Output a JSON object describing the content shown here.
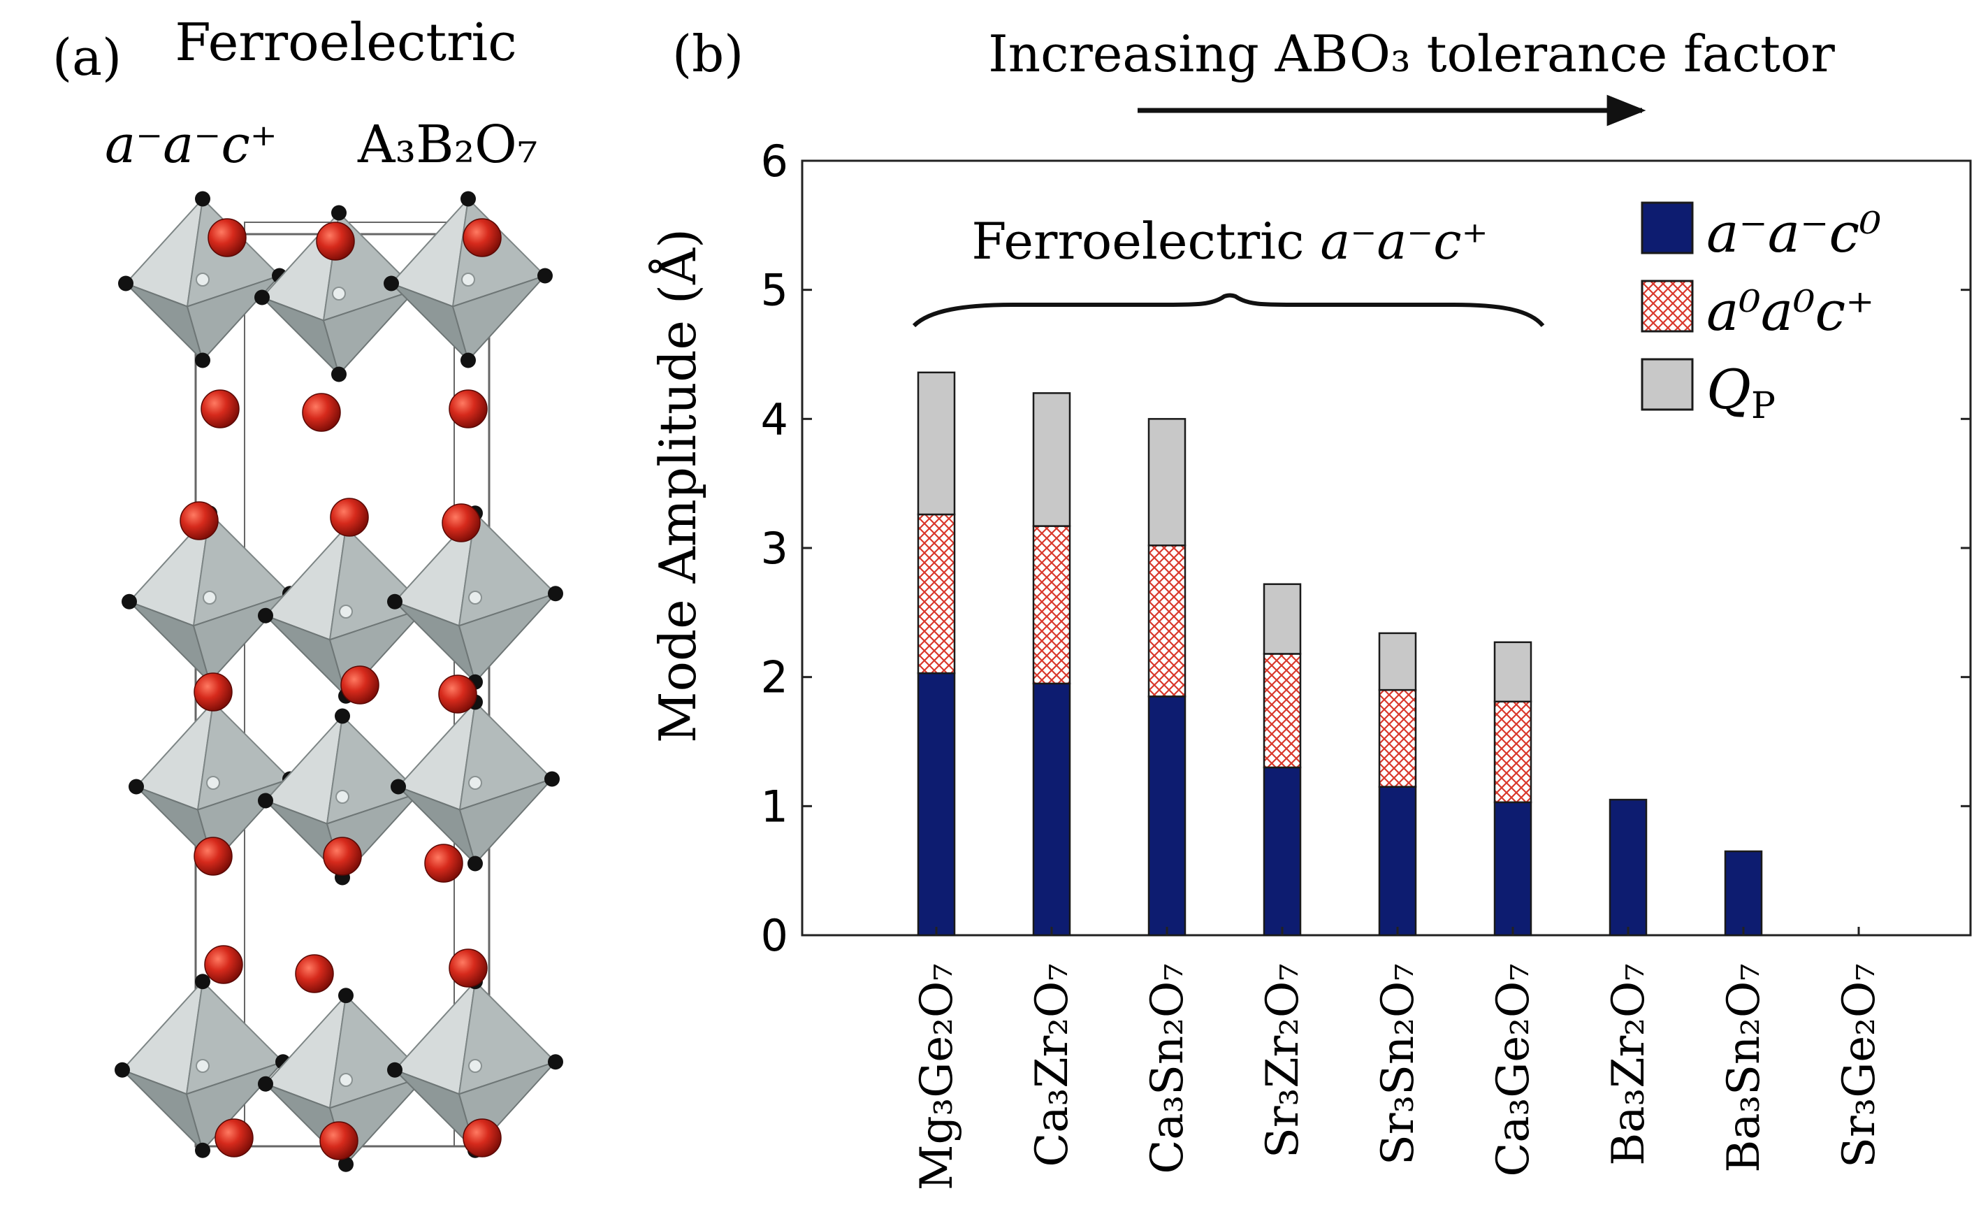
{
  "panel_a": {
    "label": "(a)",
    "title_line1": "Ferroelectric",
    "title_line2_tilt": "a⁻a⁻c⁺",
    "title_line2_formula": "A₃B₂O₇",
    "colors": {
      "octahedron": "#b9c0c0",
      "a_site": "#d0281e",
      "oxygen": "#111111",
      "cell": "#666666"
    }
  },
  "panel_b": {
    "label": "(b)",
    "arrow_label": "Increasing ABO₃ tolerance factor",
    "brace_label_text": "Ferroelectric ",
    "brace_label_math": "a⁻a⁻c⁺"
  },
  "chart_data": {
    "type": "bar",
    "stacked": true,
    "ylabel": "Mode Amplitude (Å)",
    "ylim": [
      0,
      6
    ],
    "yticks": [
      0,
      1,
      2,
      3,
      4,
      5,
      6
    ],
    "categories": [
      "Mg₃Ge₂O₇",
      "Ca₃Zr₂O₇",
      "Ca₃Sn₂O₇",
      "Sr₃Zr₂O₇",
      "Sr₃Sn₂O₇",
      "Ca₃Ge₂O₇",
      "Ba₃Zr₂O₇",
      "Ba₃Sn₂O₇",
      "Sr₃Ge₂O₇"
    ],
    "series": [
      {
        "name": "a⁻a⁻c⁰",
        "values": [
          2.03,
          1.95,
          1.85,
          1.3,
          1.15,
          1.03,
          1.05,
          0.65,
          0
        ],
        "color": "#0d1c70",
        "fill": "solid"
      },
      {
        "name": "a⁰a⁰c⁺",
        "values": [
          1.23,
          1.22,
          1.17,
          0.88,
          0.75,
          0.78,
          0,
          0,
          0
        ],
        "color": "#d9382c",
        "fill": "crosshatch"
      },
      {
        "name": "Q_P",
        "values": [
          1.1,
          1.03,
          0.98,
          0.54,
          0.44,
          0.46,
          0,
          0,
          0
        ],
        "color": "#c8c8c8",
        "fill": "solid"
      }
    ],
    "legend_position": "top-right",
    "grid": false
  }
}
